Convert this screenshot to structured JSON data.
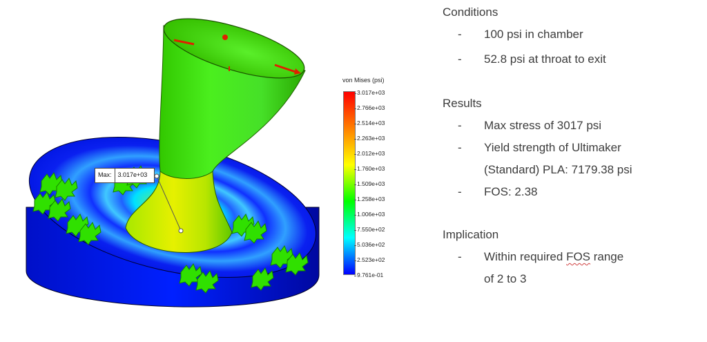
{
  "legend": {
    "title": "von Mises (psi)",
    "colors": [
      "#ff0000",
      "#ff8000",
      "#ffff00",
      "#00ff00",
      "#00ffff",
      "#0000ff"
    ],
    "ticks": [
      "3.017e+03",
      "2.766e+03",
      "2.514e+03",
      "2.263e+03",
      "2.012e+03",
      "1.760e+03",
      "1.509e+03",
      "1.258e+03",
      "1.006e+03",
      "7.550e+02",
      "5.036e+02",
      "2.523e+02",
      "9.761e-01"
    ]
  },
  "probe": {
    "label": "Max:",
    "value": "3.017e+03"
  },
  "conditions": {
    "heading": "Conditions",
    "items": [
      "100 psi in chamber",
      "52.8 psi at throat to exit"
    ]
  },
  "results": {
    "heading": "Results",
    "items": [
      "Max stress of 3017 psi",
      "Yield strength of Ultimaker",
      "(Standard) PLA: 7179.38 psi",
      "FOS: 2.38"
    ]
  },
  "implication": {
    "heading": "Implication",
    "line1_prefix": "Within required ",
    "line1_link": "FOS",
    "line1_suffix": " range",
    "line2": "of 2 to 3"
  },
  "bullet": "-"
}
